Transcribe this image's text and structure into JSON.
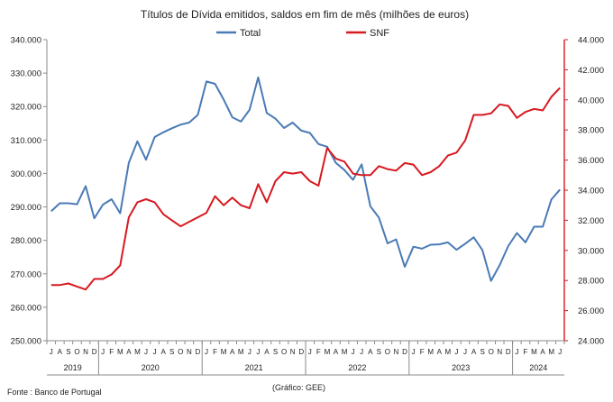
{
  "chart_data": {
    "type": "line",
    "title": "Títulos de Dívida emitidos, saldos em fim de mês  (milhões de euros)",
    "legend": {
      "placement": "top",
      "entries": [
        "Total",
        "SNF"
      ]
    },
    "series": [
      {
        "name": "Total",
        "axis": "left",
        "color": "#4a7ab5",
        "values": [
          288.7,
          291.1,
          291.1,
          290.8,
          296.2,
          286.6,
          290.7,
          292.3,
          288.1,
          303.2,
          309.6,
          304.1,
          310.9,
          312.3,
          313.5,
          314.6,
          315.2,
          317.5,
          327.5,
          326.8,
          322.1,
          316.8,
          315.5,
          319.0,
          328.7,
          318.1,
          316.4,
          313.6,
          315.2,
          312.8,
          312.1,
          308.8,
          308.0,
          303.2,
          301.0,
          298.1,
          302.7,
          290.2,
          286.8,
          279.1,
          280.3,
          272.1,
          278.1,
          277.5,
          278.7,
          278.8,
          279.4,
          277.2,
          279.0,
          280.9,
          277.1,
          267.9,
          272.6,
          278.3,
          282.2,
          279.4,
          284.1,
          284.1,
          292.2,
          295.2
        ]
      },
      {
        "name": "SNF",
        "axis": "right",
        "color": "#d71920",
        "values": [
          27.7,
          27.7,
          27.8,
          27.6,
          27.4,
          28.1,
          28.1,
          28.4,
          29.0,
          32.2,
          33.2,
          33.4,
          33.2,
          32.4,
          32.0,
          31.6,
          31.9,
          32.2,
          32.5,
          33.6,
          33.0,
          33.5,
          33.0,
          32.8,
          34.4,
          33.2,
          34.6,
          35.2,
          35.1,
          35.2,
          34.6,
          34.3,
          36.8,
          36.1,
          35.9,
          35.1,
          35.0,
          35.0,
          35.6,
          35.4,
          35.3,
          35.8,
          35.7,
          35.0,
          35.2,
          35.6,
          36.3,
          36.5,
          37.3,
          39.0,
          39.0,
          39.1,
          39.7,
          39.6,
          38.8,
          39.2,
          39.4,
          39.3,
          40.2,
          40.8
        ]
      }
    ],
    "y_left": {
      "range": [
        250000,
        340000
      ],
      "ticks": [
        "250.000",
        "260.000",
        "270.000",
        "280.000",
        "290.000",
        "300.000",
        "310.000",
        "320.000",
        "330.000",
        "340.000"
      ]
    },
    "y_right": {
      "range": [
        24000,
        44000
      ],
      "ticks": [
        "24.000",
        "26.000",
        "28.000",
        "30.000",
        "32.000",
        "34.000",
        "36.000",
        "38.000",
        "40.000",
        "42.000",
        "44.000"
      ]
    },
    "month_labels": [
      "J",
      "A",
      "S",
      "O",
      "N",
      "D",
      "J",
      "F",
      "M",
      "A",
      "M",
      "J",
      "J",
      "A",
      "S",
      "O",
      "N",
      "D",
      "J",
      "F",
      "M",
      "A",
      "M",
      "J",
      "J",
      "A",
      "S",
      "O",
      "N",
      "D",
      "J",
      "F",
      "M",
      "A",
      "M",
      "J",
      "J",
      "A",
      "S",
      "O",
      "N",
      "D",
      "J",
      "F",
      "M",
      "A",
      "M",
      "J",
      "J",
      "A",
      "S",
      "O",
      "N",
      "D",
      "J",
      "F",
      "M",
      "A",
      "M",
      "J"
    ],
    "years": [
      {
        "label": "2019",
        "first": 0,
        "last": 5
      },
      {
        "label": "2020",
        "first": 6,
        "last": 17
      },
      {
        "label": "2021",
        "first": 18,
        "last": 29
      },
      {
        "label": "2022",
        "first": 30,
        "last": 41
      },
      {
        "label": "2023",
        "first": 42,
        "last": 53
      },
      {
        "label": "2024",
        "first": 54,
        "last": 59
      }
    ],
    "grid": false
  },
  "footer": {
    "source": "Fonte : Banco de Portugal",
    "credit": "(Gráfico:  GEE)"
  }
}
